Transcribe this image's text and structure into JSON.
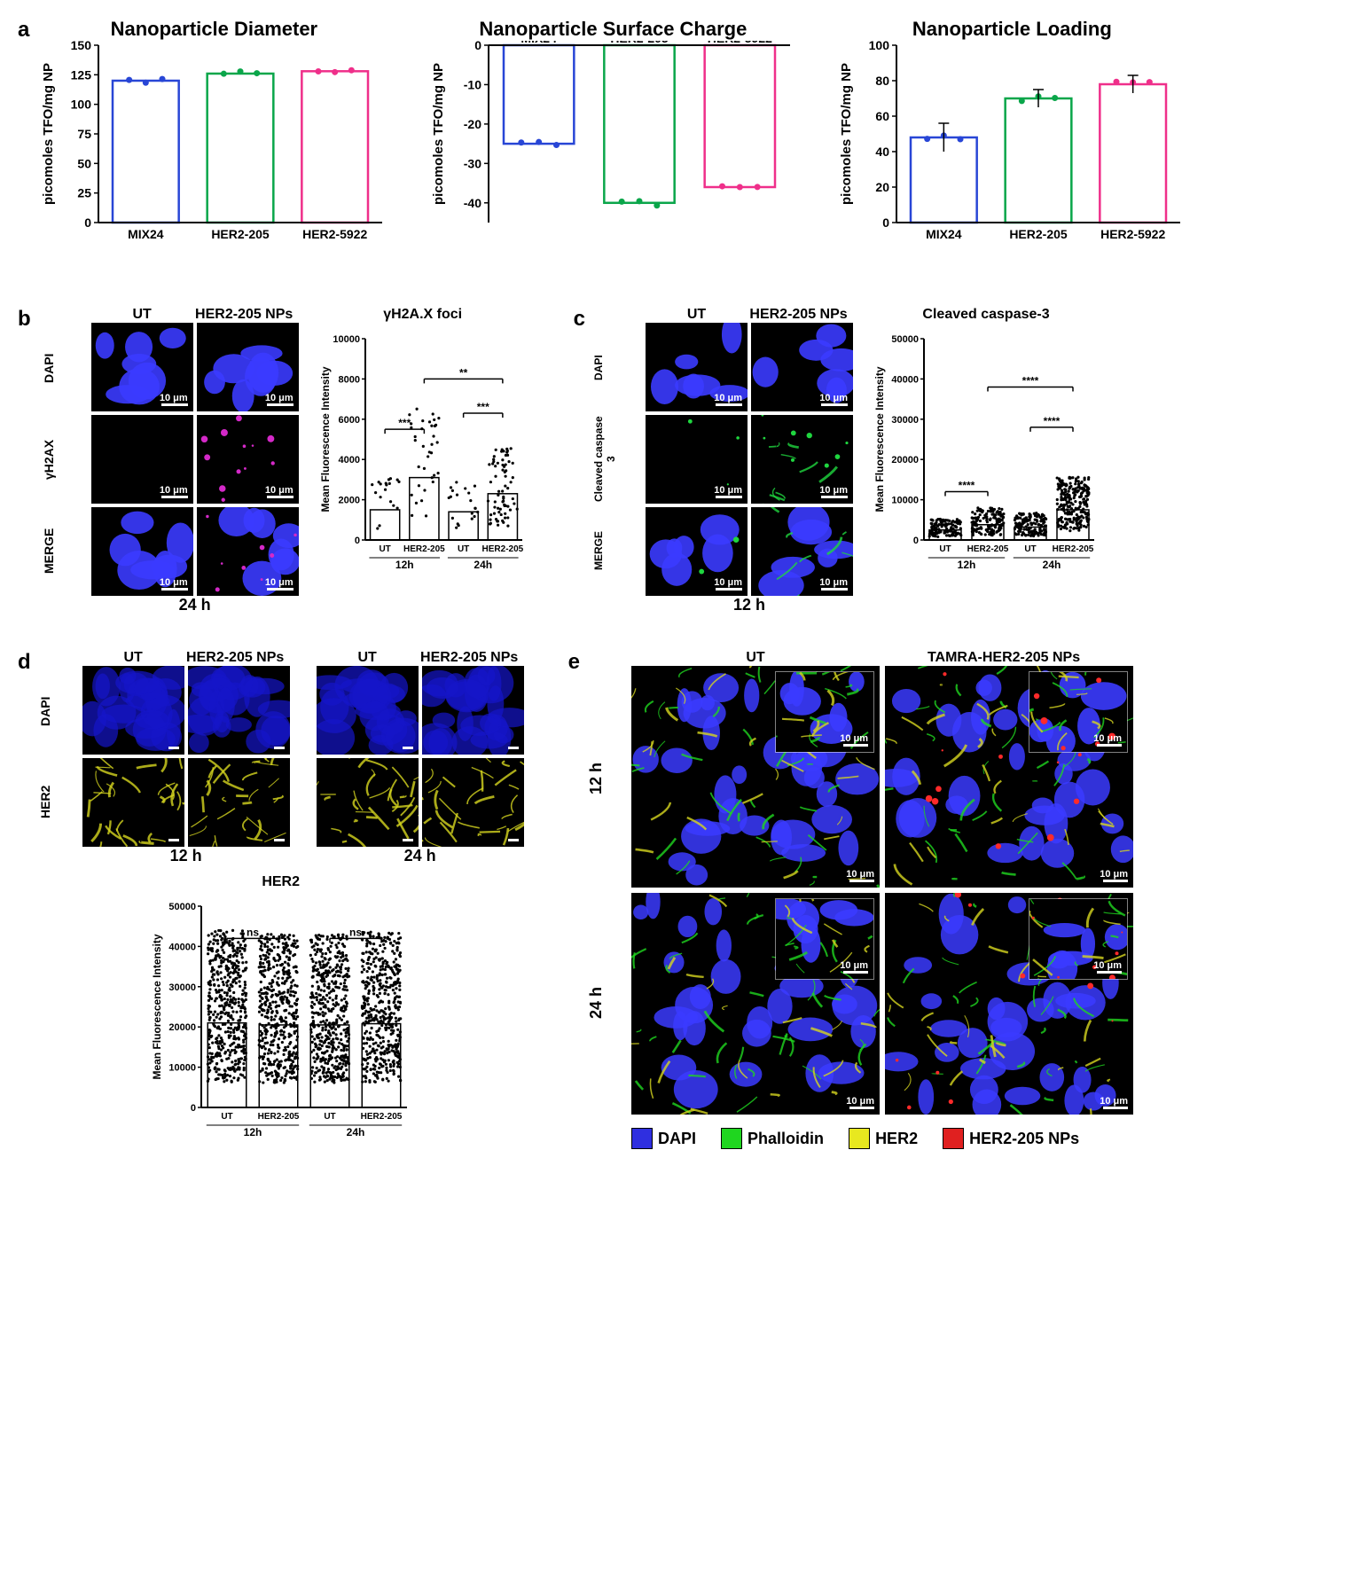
{
  "titles": {
    "a1": "Nanoparticle Diameter",
    "a2": "Nanoparticle Surface Charge",
    "a3": "Nanoparticle Loading",
    "b_chart": "γH2A.X  foci",
    "c_chart": "Cleaved caspase-3",
    "d_chart": "HER2"
  },
  "panel_labels": {
    "a": "a",
    "b": "b",
    "c": "c",
    "d": "d",
    "e": "e"
  },
  "axis_label_y": "picomoles TFO/mg NP",
  "mfi_label": "Mean Fluorescence Intensity",
  "categories3": [
    "MIX24",
    "HER2-205",
    "HER2-5922"
  ],
  "chart_a1": {
    "type": "bar",
    "values": [
      120,
      126,
      128
    ],
    "colors": [
      "#2846d6",
      "#0aa64a",
      "#ef2f8a"
    ],
    "ylim": [
      0,
      150
    ],
    "yticks": [
      0,
      25,
      50,
      75,
      100,
      125,
      150
    ],
    "bg": "#ffffff",
    "axis_color": "#000",
    "bar_width": 0.7
  },
  "chart_a2": {
    "type": "bar",
    "values": [
      -25,
      -40,
      -36
    ],
    "colors": [
      "#2846d6",
      "#0aa64a",
      "#ef2f8a"
    ],
    "ylim": [
      -45,
      0
    ],
    "yticks": [
      -40,
      -30,
      -20,
      -10,
      0
    ],
    "bg": "#ffffff",
    "axis_color": "#000",
    "bar_width": 0.7
  },
  "chart_a3": {
    "type": "bar",
    "values": [
      48,
      70,
      78
    ],
    "err": [
      8,
      5,
      5
    ],
    "colors": [
      "#2846d6",
      "#0aa64a",
      "#ef2f8a"
    ],
    "ylim": [
      0,
      100
    ],
    "yticks": [
      0,
      20,
      40,
      60,
      80,
      100
    ],
    "bg": "#ffffff",
    "axis_color": "#000",
    "bar_width": 0.7
  },
  "cols_2": {
    "ut": "UT",
    "np": "HER2-205 NPs"
  },
  "rows_b": [
    "DAPI",
    "γH2AX",
    "MERGE"
  ],
  "rows_c": [
    "DAPI",
    "Cleaved caspase 3",
    "MERGE"
  ],
  "rows_d": [
    "DAPI",
    "HER2"
  ],
  "time": {
    "t12": "12h",
    "t24": "24h",
    "t12s": "12 h",
    "t24s": "24 h"
  },
  "scale10": "10 μm",
  "chart_b": {
    "type": "bar-scatter",
    "groups": [
      "UT",
      "HER2-205",
      "UT",
      "HER2-205"
    ],
    "means": [
      1500,
      3100,
      1400,
      2300
    ],
    "ylim": [
      0,
      10000
    ],
    "yticks": [
      0,
      2000,
      4000,
      6000,
      8000,
      10000
    ],
    "sig": [
      {
        "from": 0,
        "to": 1,
        "label": "***",
        "y": 5500
      },
      {
        "from": 2,
        "to": 3,
        "label": "***",
        "y": 6300
      },
      {
        "from": 1,
        "to": 3,
        "label": "**",
        "y": 8000
      }
    ],
    "scatter_counts": [
      18,
      35,
      20,
      70
    ],
    "axis_color": "#000",
    "bg": "#fff",
    "bar_fill": "#fff",
    "bar_stroke": "#000"
  },
  "chart_c": {
    "type": "bar-scatter",
    "groups": [
      "UT",
      "HER2-205",
      "UT",
      "HER2-205"
    ],
    "means": [
      2500,
      3800,
      3200,
      7500
    ],
    "ylim": [
      0,
      50000
    ],
    "yticks": [
      0,
      10000,
      20000,
      30000,
      40000,
      50000
    ],
    "sig": [
      {
        "from": 0,
        "to": 1,
        "label": "****",
        "y": 12000
      },
      {
        "from": 2,
        "to": 3,
        "label": "****",
        "y": 28000
      },
      {
        "from": 1,
        "to": 3,
        "label": "****",
        "y": 38000
      }
    ],
    "scatter_counts": [
      120,
      160,
      150,
      260
    ],
    "axis_color": "#000",
    "bg": "#fff",
    "bar_fill": "#fff",
    "bar_stroke": "#000"
  },
  "chart_d": {
    "type": "bar-scatter",
    "groups": [
      "UT",
      "HER2-205",
      "UT",
      "HER2-205"
    ],
    "means": [
      21000,
      20500,
      20500,
      20800
    ],
    "ylim": [
      0,
      50000
    ],
    "yticks": [
      0,
      10000,
      20000,
      30000,
      40000,
      50000
    ],
    "sig": [
      {
        "from": 0,
        "to": 1,
        "label": "ns",
        "y": 42000
      },
      {
        "from": 2,
        "to": 3,
        "label": "ns",
        "y": 42000
      }
    ],
    "scatter_counts": [
      500,
      500,
      500,
      500
    ],
    "axis_color": "#000",
    "bg": "#fff",
    "bar_fill": "#fff",
    "bar_stroke": "#000"
  },
  "panel_e": {
    "cols": {
      "ut": "UT",
      "np": "TAMRA-HER2-205 NPs"
    },
    "rows": [
      "12 h",
      "24 h"
    ],
    "legend": [
      {
        "label": "DAPI",
        "color": "#2f2fe0"
      },
      {
        "label": "Phalloidin",
        "color": "#1fd61f"
      },
      {
        "label": "HER2",
        "color": "#e8e81f"
      },
      {
        "label": "HER2-205 NPs",
        "color": "#e02020"
      }
    ]
  },
  "micro_colors": {
    "dapi": "#1515c9",
    "dapi_cell": "#3b3bff",
    "gh2ax": "#d429c8",
    "cc3": "#1fd63f",
    "her2": "#d6d61f",
    "phal": "#1fd61f",
    "tamra": "#ff2a2a"
  }
}
